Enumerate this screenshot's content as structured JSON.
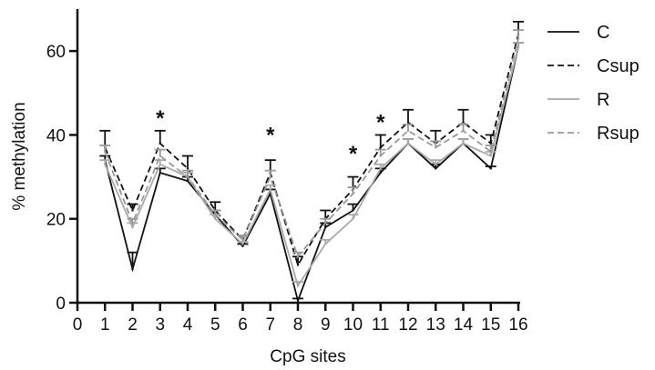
{
  "chart_data": {
    "type": "line",
    "xlabel": "CpG sites",
    "ylabel": "% methylation",
    "xlim": [
      0,
      16
    ],
    "ylim": [
      0,
      70
    ],
    "x_ticks": [
      0,
      1,
      2,
      3,
      4,
      5,
      6,
      7,
      8,
      9,
      10,
      11,
      12,
      13,
      14,
      15,
      16
    ],
    "y_ticks": [
      0,
      20,
      40,
      60
    ],
    "grid": false,
    "legend_position": "right",
    "series": [
      {
        "name": "C",
        "line_color": "#111111",
        "dashed": false,
        "x": [
          1,
          2,
          3,
          4,
          5,
          6,
          7,
          8,
          9,
          10,
          11,
          12,
          13,
          14,
          15,
          16
        ],
        "values": [
          34,
          8,
          31,
          29,
          21,
          13.5,
          26,
          0.5,
          18,
          22,
          31,
          38,
          32,
          38,
          32,
          61
        ],
        "errors": [
          1,
          4,
          1,
          1,
          1,
          0.5,
          1,
          0.5,
          1,
          1.5,
          1,
          1,
          1,
          1,
          0.5,
          1
        ]
      },
      {
        "name": "Csup",
        "line_color": "#111111",
        "dashed": true,
        "x": [
          1,
          2,
          3,
          4,
          5,
          6,
          7,
          8,
          9,
          10,
          11,
          12,
          13,
          14,
          15,
          16
        ],
        "values": [
          37,
          22,
          38,
          32,
          22,
          15,
          31,
          9,
          20,
          27,
          37,
          43,
          38,
          43,
          38,
          64
        ],
        "errors": [
          4,
          1.5,
          3,
          3,
          2,
          1,
          3,
          2,
          2,
          3,
          3,
          3,
          3,
          3,
          2,
          3
        ]
      },
      {
        "name": "R",
        "line_color": "#aaaaaa",
        "dashed": false,
        "x": [
          1,
          2,
          3,
          4,
          5,
          6,
          7,
          8,
          9,
          10,
          11,
          12,
          13,
          14,
          15,
          16
        ],
        "values": [
          33,
          18,
          33,
          30,
          20,
          14,
          27,
          4,
          14,
          20,
          32,
          38,
          33,
          38,
          35,
          61
        ],
        "errors": [
          1,
          1,
          1,
          1,
          1,
          0.5,
          1,
          1,
          1,
          1,
          1,
          1,
          1,
          1,
          1,
          1
        ]
      },
      {
        "name": "Rsup",
        "line_color": "#999999",
        "dashed": true,
        "x": [
          1,
          2,
          3,
          4,
          5,
          6,
          7,
          8,
          9,
          10,
          11,
          12,
          13,
          14,
          15,
          16
        ],
        "values": [
          36,
          19,
          35,
          30,
          21,
          15,
          30,
          11,
          19,
          26,
          35,
          41,
          37,
          41,
          36,
          63
        ],
        "errors": [
          1.5,
          1,
          1.5,
          1.5,
          1,
          1,
          1.5,
          1,
          1,
          1.5,
          1.5,
          1.5,
          1.5,
          1.5,
          1.5,
          2
        ]
      }
    ],
    "annotations": [
      {
        "text": "*",
        "x": 3,
        "y": 44
      },
      {
        "text": "*",
        "x": 7,
        "y": 40
      },
      {
        "text": "*",
        "x": 10,
        "y": 35.5
      },
      {
        "text": "*",
        "x": 11,
        "y": 43
      }
    ]
  }
}
